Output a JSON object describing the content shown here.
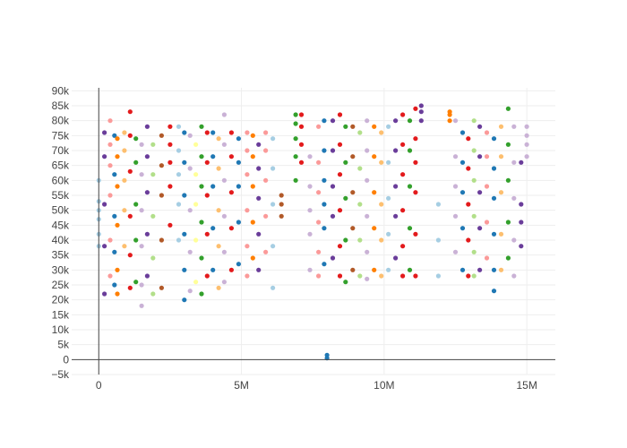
{
  "chart_data": {
    "type": "scatter",
    "title": "",
    "xlabel": "",
    "ylabel": "",
    "xlim": [
      -950000,
      16000000
    ],
    "ylim": [
      -5000,
      91000
    ],
    "grid": true,
    "legend": "none",
    "x_ticks": [
      {
        "value": 0,
        "label": "0"
      },
      {
        "value": 5000000,
        "label": "5M"
      },
      {
        "value": 10000000,
        "label": "10M"
      },
      {
        "value": 15000000,
        "label": "15M"
      }
    ],
    "y_ticks": [
      {
        "value": -5000,
        "label": "−5k"
      },
      {
        "value": 0,
        "label": "0"
      },
      {
        "value": 5000,
        "label": "5k"
      },
      {
        "value": 10000,
        "label": "10k"
      },
      {
        "value": 15000,
        "label": "15k"
      },
      {
        "value": 20000,
        "label": "20k"
      },
      {
        "value": 25000,
        "label": "25k"
      },
      {
        "value": 30000,
        "label": "30k"
      },
      {
        "value": 35000,
        "label": "35k"
      },
      {
        "value": 40000,
        "label": "40k"
      },
      {
        "value": 45000,
        "label": "45k"
      },
      {
        "value": 50000,
        "label": "50k"
      },
      {
        "value": 55000,
        "label": "55k"
      },
      {
        "value": 60000,
        "label": "60k"
      },
      {
        "value": 65000,
        "label": "65k"
      },
      {
        "value": 70000,
        "label": "70k"
      },
      {
        "value": 75000,
        "label": "75k"
      },
      {
        "value": 80000,
        "label": "80k"
      },
      {
        "value": 85000,
        "label": "85k"
      },
      {
        "value": 90000,
        "label": "90k"
      }
    ],
    "palette": [
      "#a6cee3",
      "#1f78b4",
      "#b2df8a",
      "#33a02c",
      "#fb9a99",
      "#e31a1c",
      "#fdbf6f",
      "#ff7f00",
      "#cab2d6",
      "#6a3d9a",
      "#ffff99",
      "#b15928"
    ],
    "series": [
      {
        "x": [
          0,
          0,
          0,
          0,
          0,
          0
        ],
        "y": [
          38000,
          42000,
          47000,
          50000,
          53000,
          60000
        ],
        "color": 0
      },
      {
        "x": [
          200000,
          200000,
          200000,
          200000,
          200000
        ],
        "y": [
          22000,
          38000,
          52000,
          68000,
          76000
        ],
        "color": 9
      },
      {
        "x": [
          400000,
          400000,
          400000,
          400000,
          400000,
          400000
        ],
        "y": [
          28000,
          40000,
          55000,
          65000,
          72000,
          80000
        ],
        "color": 4
      },
      {
        "x": [
          550000,
          550000,
          550000,
          550000,
          550000
        ],
        "y": [
          25000,
          36000,
          48000,
          62000,
          75000
        ],
        "color": 1
      },
      {
        "x": [
          650000,
          650000,
          650000,
          650000,
          650000,
          650000
        ],
        "y": [
          22000,
          30000,
          45000,
          58000,
          68000,
          74000
        ],
        "color": 7
      },
      {
        "x": [
          900000,
          900000,
          900000,
          900000,
          900000
        ],
        "y": [
          38000,
          50000,
          60000,
          70000,
          76000
        ],
        "color": 6
      },
      {
        "x": [
          1100000,
          1100000,
          1100000,
          1100000,
          1100000,
          1100000
        ],
        "y": [
          24000,
          35000,
          48000,
          63000,
          75000,
          83000
        ],
        "color": 5
      },
      {
        "x": [
          1300000,
          1300000,
          1300000,
          1300000,
          1300000
        ],
        "y": [
          26000,
          40000,
          52000,
          66000,
          74000
        ],
        "color": 3
      },
      {
        "x": [
          1500000,
          1500000,
          1500000,
          1500000,
          1500000,
          1500000
        ],
        "y": [
          18000,
          25000,
          38000,
          50000,
          62000,
          72000
        ],
        "color": 8
      },
      {
        "x": [
          1700000,
          1700000,
          1700000,
          1700000,
          1700000
        ],
        "y": [
          28000,
          42000,
          56000,
          68000,
          78000
        ],
        "color": 9
      },
      {
        "x": [
          1900000,
          1900000,
          1900000,
          1900000,
          1900000
        ],
        "y": [
          22000,
          34000,
          48000,
          62000,
          72000
        ],
        "color": 2
      },
      {
        "x": [
          2200000,
          2200000,
          2200000,
          2200000,
          2200000
        ],
        "y": [
          24000,
          40000,
          55000,
          65000,
          75000
        ],
        "color": 11
      },
      {
        "x": [
          2500000,
          2500000,
          2500000,
          2500000,
          2500000
        ],
        "y": [
          45000,
          58000,
          66000,
          72000,
          78000
        ],
        "color": 5
      },
      {
        "x": [
          2800000,
          2800000,
          2800000,
          2800000,
          2800000
        ],
        "y": [
          40000,
          52000,
          62000,
          70000,
          78000
        ],
        "color": 0
      },
      {
        "x": [
          3000000,
          3000000,
          3000000,
          3000000,
          3000000,
          3000000
        ],
        "y": [
          20000,
          30000,
          42000,
          55000,
          66000,
          76000
        ],
        "color": 1
      },
      {
        "x": [
          3200000,
          3200000,
          3200000,
          3200000,
          3200000
        ],
        "y": [
          23000,
          36000,
          50000,
          64000,
          75000
        ],
        "color": 8
      },
      {
        "x": [
          3400000,
          3400000,
          3400000,
          3400000,
          3400000
        ],
        "y": [
          26000,
          40000,
          52000,
          62000,
          72000
        ],
        "color": 10
      },
      {
        "x": [
          3600000,
          3600000,
          3600000,
          3600000,
          3600000,
          3600000
        ],
        "y": [
          22000,
          34000,
          46000,
          58000,
          68000,
          78000
        ],
        "color": 3
      },
      {
        "x": [
          3800000,
          3800000,
          3800000,
          3800000,
          3800000
        ],
        "y": [
          28000,
          42000,
          55000,
          66000,
          76000
        ],
        "color": 5
      },
      {
        "x": [
          4000000,
          4000000,
          4000000,
          4000000,
          4000000
        ],
        "y": [
          30000,
          44000,
          58000,
          68000,
          76000
        ],
        "color": 1
      },
      {
        "x": [
          4200000,
          4200000,
          4200000,
          4200000,
          4200000
        ],
        "y": [
          24000,
          38000,
          50000,
          64000,
          74000
        ],
        "color": 6
      },
      {
        "x": [
          4400000,
          4400000,
          4400000,
          4400000,
          4400000,
          4400000
        ],
        "y": [
          26000,
          36000,
          48000,
          60000,
          72000,
          82000
        ],
        "color": 8
      },
      {
        "x": [
          4650000,
          4650000,
          4650000,
          4650000,
          4650000
        ],
        "y": [
          30000,
          44000,
          56000,
          68000,
          76000
        ],
        "color": 5
      },
      {
        "x": [
          4900000,
          4900000,
          4900000,
          4900000,
          4900000
        ],
        "y": [
          32000,
          46000,
          58000,
          66000,
          74000
        ],
        "color": 1
      },
      {
        "x": [
          5200000,
          5200000,
          5200000,
          5200000,
          5200000,
          5200000
        ],
        "y": [
          28000,
          38000,
          50000,
          62000,
          70000,
          76000
        ],
        "color": 4
      },
      {
        "x": [
          5400000,
          5400000,
          5400000,
          5400000,
          5400000
        ],
        "y": [
          34000,
          46000,
          58000,
          68000,
          75000
        ],
        "color": 7
      },
      {
        "x": [
          5600000,
          5600000,
          5600000,
          5600000,
          5600000
        ],
        "y": [
          30000,
          42000,
          54000,
          64000,
          72000
        ],
        "color": 9
      },
      {
        "x": [
          5850000,
          5850000,
          5850000,
          5850000,
          5850000
        ],
        "y": [
          36000,
          48000,
          60000,
          70000,
          76000
        ],
        "color": 4
      },
      {
        "x": [
          6100000,
          6100000,
          6100000,
          6100000,
          6100000
        ],
        "y": [
          24000,
          38000,
          52000,
          64000,
          74000
        ],
        "color": 0
      },
      {
        "x": [
          6400000,
          6400000,
          6400000
        ],
        "y": [
          48000,
          52000,
          55000
        ],
        "color": 11
      },
      {
        "x": [
          6900000,
          6900000,
          6900000,
          6900000,
          6900000
        ],
        "y": [
          60000,
          68000,
          74000,
          79000,
          82000
        ],
        "color": 3
      },
      {
        "x": [
          7100000,
          7100000,
          7100000,
          7100000
        ],
        "y": [
          66000,
          72000,
          78000,
          82000
        ],
        "color": 5
      },
      {
        "x": [
          7400000,
          7400000,
          7400000,
          7400000,
          7400000
        ],
        "y": [
          30000,
          42000,
          50000,
          58000,
          68000
        ],
        "color": 8
      },
      {
        "x": [
          7700000,
          7700000,
          7700000,
          7700000,
          7700000,
          7700000
        ],
        "y": [
          28000,
          36000,
          46000,
          56000,
          66000,
          78000
        ],
        "color": 4
      },
      {
        "x": [
          7900000,
          7900000,
          7900000,
          7900000,
          7900000,
          7900000
        ],
        "y": [
          32000,
          44000,
          52000,
          60000,
          70000,
          80000
        ],
        "color": 1
      },
      {
        "x": [
          8000000,
          8000000
        ],
        "y": [
          500,
          1500
        ],
        "color": 1
      },
      {
        "x": [
          8200000,
          8200000,
          8200000,
          8200000,
          8200000
        ],
        "y": [
          34000,
          48000,
          58000,
          70000,
          80000
        ],
        "color": 9
      },
      {
        "x": [
          8450000,
          8450000,
          8450000,
          8450000,
          8450000,
          8450000
        ],
        "y": [
          28000,
          38000,
          50000,
          62000,
          72000,
          82000
        ],
        "color": 5
      },
      {
        "x": [
          8650000,
          8650000,
          8650000,
          8650000,
          8650000
        ],
        "y": [
          26000,
          40000,
          54000,
          66000,
          78000
        ],
        "color": 3
      },
      {
        "x": [
          8900000,
          8900000,
          8900000,
          8900000,
          8900000
        ],
        "y": [
          30000,
          44000,
          56000,
          68000,
          78000
        ],
        "color": 11
      },
      {
        "x": [
          9150000,
          9150000,
          9150000,
          9150000,
          9150000
        ],
        "y": [
          28000,
          40000,
          52000,
          64000,
          76000
        ],
        "color": 2
      },
      {
        "x": [
          9400000,
          9400000,
          9400000,
          9400000,
          9400000,
          9400000
        ],
        "y": [
          27000,
          36000,
          48000,
          60000,
          70000,
          80000
        ],
        "color": 8
      },
      {
        "x": [
          9650000,
          9650000,
          9650000,
          9650000,
          9650000
        ],
        "y": [
          30000,
          44000,
          56000,
          68000,
          78000
        ],
        "color": 7
      },
      {
        "x": [
          9900000,
          9900000,
          9900000,
          9900000,
          9900000
        ],
        "y": [
          28000,
          40000,
          52000,
          66000,
          76000
        ],
        "color": 6
      },
      {
        "x": [
          10150000,
          10150000,
          10150000,
          10150000,
          10150000
        ],
        "y": [
          30000,
          42000,
          54000,
          66000,
          78000
        ],
        "color": 0
      },
      {
        "x": [
          10400000,
          10400000,
          10400000,
          10400000,
          10400000
        ],
        "y": [
          34000,
          48000,
          58000,
          70000,
          80000
        ],
        "color": 9
      },
      {
        "x": [
          10650000,
          10650000,
          10650000,
          10650000,
          10650000,
          10650000
        ],
        "y": [
          28000,
          38000,
          50000,
          62000,
          72000,
          82000
        ],
        "color": 5
      },
      {
        "x": [
          10900000,
          10900000,
          10900000,
          10900000,
          10900000
        ],
        "y": [
          30000,
          44000,
          58000,
          70000,
          80000
        ],
        "color": 3
      },
      {
        "x": [
          11100000,
          11100000,
          11100000,
          11100000,
          11100000,
          11100000
        ],
        "y": [
          28000,
          42000,
          56000,
          66000,
          74000,
          84000
        ],
        "color": 5
      },
      {
        "x": [
          11300000,
          11300000,
          11300000
        ],
        "y": [
          80000,
          83000,
          85000
        ],
        "color": 9
      },
      {
        "x": [
          11900000,
          11900000,
          11900000
        ],
        "y": [
          28000,
          40000,
          52000
        ],
        "color": 0
      },
      {
        "x": [
          12300000,
          12300000,
          12300000
        ],
        "y": [
          80000,
          82000,
          83000
        ],
        "color": 7
      },
      {
        "x": [
          12500000,
          12500000,
          12500000,
          12500000,
          12500000
        ],
        "y": [
          36000,
          48000,
          58000,
          68000,
          80000
        ],
        "color": 8
      },
      {
        "x": [
          12750000,
          12750000,
          12750000,
          12750000,
          12750000
        ],
        "y": [
          30000,
          44000,
          56000,
          66000,
          76000
        ],
        "color": 1
      },
      {
        "x": [
          12950000,
          12950000,
          12950000,
          12950000,
          12950000
        ],
        "y": [
          28000,
          40000,
          52000,
          64000,
          74000
        ],
        "color": 5
      },
      {
        "x": [
          13150000,
          13150000,
          13150000,
          13150000,
          13150000,
          13150000
        ],
        "y": [
          28000,
          36000,
          48000,
          60000,
          70000,
          80000
        ],
        "color": 2
      },
      {
        "x": [
          13350000,
          13350000,
          13350000,
          13350000,
          13350000
        ],
        "y": [
          30000,
          44000,
          56000,
          68000,
          78000
        ],
        "color": 9
      },
      {
        "x": [
          13600000,
          13600000,
          13600000,
          13600000,
          13600000
        ],
        "y": [
          34000,
          46000,
          58000,
          68000,
          76000
        ],
        "color": 4
      },
      {
        "x": [
          13850000,
          13850000,
          13850000,
          13850000,
          13850000,
          13850000
        ],
        "y": [
          23000,
          30000,
          42000,
          54000,
          64000,
          74000
        ],
        "color": 1
      },
      {
        "x": [
          14100000,
          14100000,
          14100000,
          14100000,
          14100000
        ],
        "y": [
          30000,
          42000,
          56000,
          68000,
          78000
        ],
        "color": 6
      },
      {
        "x": [
          14350000,
          14350000,
          14350000,
          14350000,
          14350000
        ],
        "y": [
          34000,
          46000,
          60000,
          72000,
          84000
        ],
        "color": 3
      },
      {
        "x": [
          14550000,
          14550000,
          14550000,
          14550000,
          14550000
        ],
        "y": [
          28000,
          40000,
          54000,
          66000,
          78000
        ],
        "color": 8
      },
      {
        "x": [
          14800000,
          14800000,
          14800000,
          14800000
        ],
        "y": [
          38000,
          46000,
          52000,
          66000
        ],
        "color": 9
      },
      {
        "x": [
          15000000,
          15000000,
          15000000,
          15000000
        ],
        "y": [
          68000,
          72000,
          75000,
          78000
        ],
        "color": 8
      }
    ]
  }
}
